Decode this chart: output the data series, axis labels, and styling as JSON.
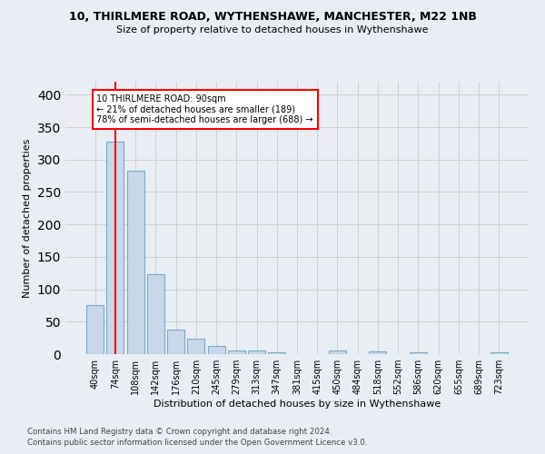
{
  "title1": "10, THIRLMERE ROAD, WYTHENSHAWE, MANCHESTER, M22 1NB",
  "title2": "Size of property relative to detached houses in Wythenshawe",
  "xlabel": "Distribution of detached houses by size in Wythenshawe",
  "ylabel": "Number of detached properties",
  "footnote1": "Contains HM Land Registry data © Crown copyright and database right 2024.",
  "footnote2": "Contains public sector information licensed under the Open Government Licence v3.0.",
  "bin_labels": [
    "40sqm",
    "74sqm",
    "108sqm",
    "142sqm",
    "176sqm",
    "210sqm",
    "245sqm",
    "279sqm",
    "313sqm",
    "347sqm",
    "381sqm",
    "415sqm",
    "450sqm",
    "484sqm",
    "518sqm",
    "552sqm",
    "586sqm",
    "620sqm",
    "655sqm",
    "689sqm",
    "723sqm"
  ],
  "bar_values": [
    75,
    328,
    283,
    123,
    38,
    24,
    12,
    5,
    5,
    3,
    0,
    0,
    5,
    0,
    4,
    0,
    3,
    0,
    0,
    0,
    3
  ],
  "bar_color": "#c8d8e8",
  "bar_edge_color": "#7aaac8",
  "grid_color": "#cccccc",
  "bg_color": "#e8eef4",
  "red_line_x": 1.0,
  "annotation_text": "10 THIRLMERE ROAD: 90sqm\n← 21% of detached houses are smaller (189)\n78% of semi-detached houses are larger (688) →",
  "annotation_box_color": "white",
  "annotation_border_color": "red",
  "ylim": [
    0,
    420
  ],
  "yticks": [
    0,
    50,
    100,
    150,
    200,
    250,
    300,
    350,
    400
  ]
}
